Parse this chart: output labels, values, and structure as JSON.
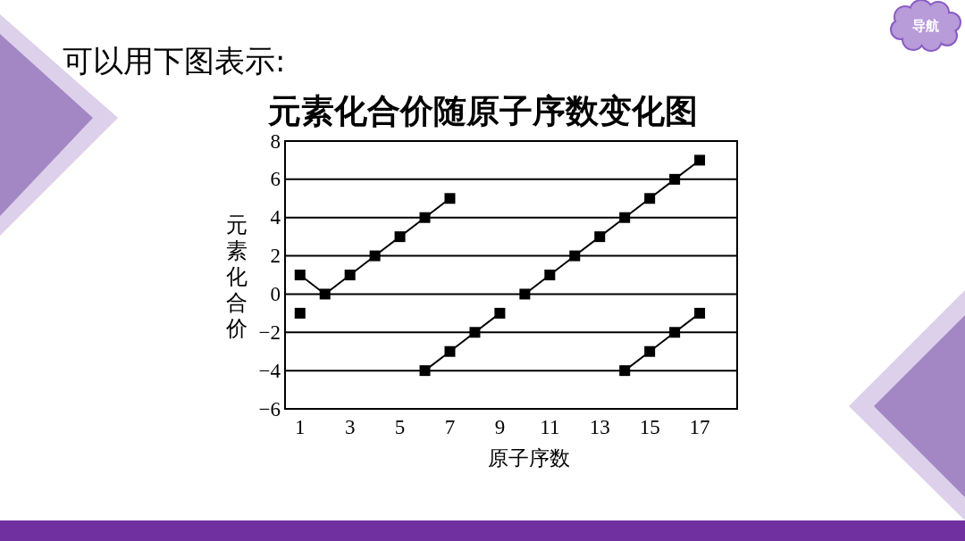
{
  "chart_data": {
    "type": "line",
    "title": "元素化合价随原子序数变化图",
    "xlabel": "原子序数",
    "ylabel": "元素化合价",
    "annotations": [
      "可以用下图表示:",
      "导航"
    ],
    "series": [
      {
        "x": [
          1,
          2,
          3,
          4,
          5,
          6,
          7
        ],
        "values": [
          1,
          0,
          1,
          2,
          3,
          4,
          5
        ],
        "color": "#000000"
      },
      {
        "x": [
          1
        ],
        "values": [
          -1
        ],
        "color": "#000000"
      },
      {
        "x": [
          6,
          7,
          8,
          9
        ],
        "values": [
          -4,
          -3,
          -2,
          -1
        ],
        "color": "#000000"
      },
      {
        "x": [
          10,
          11,
          12,
          13,
          14,
          15,
          16,
          17
        ],
        "values": [
          0,
          1,
          2,
          3,
          4,
          5,
          6,
          7
        ],
        "color": "#000000"
      },
      {
        "x": [
          14,
          15,
          16,
          17
        ],
        "values": [
          -4,
          -3,
          -2,
          -1
        ],
        "color": "#000000"
      }
    ],
    "xlim": [
      0.4,
      18.5
    ],
    "xticks": [
      1,
      3,
      5,
      7,
      9,
      11,
      13,
      15,
      17
    ],
    "ylim": [
      -6,
      8
    ],
    "yticks": [
      -6,
      -4,
      -2,
      0,
      2,
      4,
      6,
      8
    ],
    "grid": "y",
    "marker": "square",
    "line_style": "solid"
  }
}
